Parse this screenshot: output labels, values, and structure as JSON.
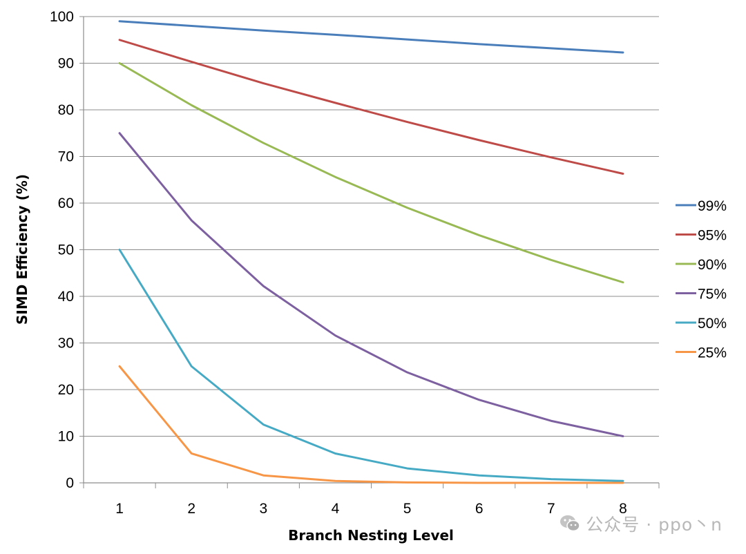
{
  "chart_data": {
    "type": "line",
    "title": "",
    "xlabel": "Branch Nesting Level",
    "ylabel": "SIMD Efficiency (%)",
    "x": [
      1,
      2,
      3,
      4,
      5,
      6,
      7,
      8
    ],
    "xlim": [
      0.5,
      8.5
    ],
    "ylim": [
      0,
      100
    ],
    "yticks": [
      0,
      10,
      20,
      30,
      40,
      50,
      60,
      70,
      80,
      90,
      100
    ],
    "grid": true,
    "legend_position": "right",
    "series": [
      {
        "name": "99%",
        "color": "#4A7EBB",
        "values": [
          99,
          98.0,
          97.0,
          96.1,
          95.1,
          94.1,
          93.2,
          92.3
        ]
      },
      {
        "name": "95%",
        "color": "#BE4B48",
        "values": [
          95,
          90.3,
          85.7,
          81.5,
          77.4,
          73.5,
          69.8,
          66.3
        ]
      },
      {
        "name": "90%",
        "color": "#98B954",
        "values": [
          90,
          81,
          72.9,
          65.6,
          59.0,
          53.1,
          47.8,
          43.0
        ]
      },
      {
        "name": "75%",
        "color": "#7D60A0",
        "values": [
          75,
          56.3,
          42.2,
          31.6,
          23.7,
          17.8,
          13.3,
          10.0
        ]
      },
      {
        "name": "50%",
        "color": "#46AAC5",
        "values": [
          50,
          25,
          12.5,
          6.3,
          3.1,
          1.6,
          0.8,
          0.4
        ]
      },
      {
        "name": "25%",
        "color": "#F79646",
        "values": [
          25,
          6.3,
          1.6,
          0.4,
          0.1,
          0.0,
          0.0,
          0.0
        ]
      }
    ]
  },
  "watermark": {
    "text": "公众号 · ppo丶n",
    "icon": "wechat-icon"
  }
}
